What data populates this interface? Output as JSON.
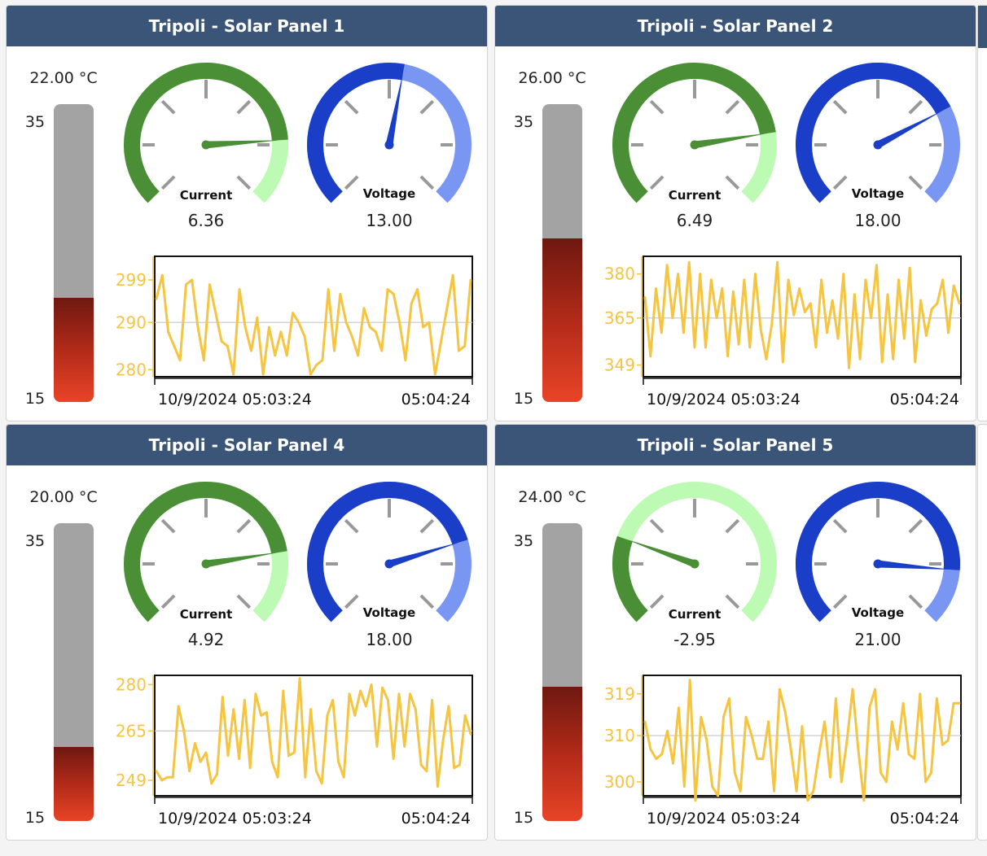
{
  "colors": {
    "header": "#3a5578",
    "current_dark": "#4a8f36",
    "current_light": "#bdfbb5",
    "voltage_dark": "#1a3ec8",
    "voltage_light": "#7896f2",
    "line": "#f5c542",
    "tick": "#999999"
  },
  "panels": [
    {
      "title": "Tripoli - Solar Panel 1",
      "temperature": "22.00 °C",
      "temp_value": 22,
      "therm_max": "35",
      "therm_min": "15",
      "current": {
        "label": "Current",
        "value": "6.36",
        "fraction": 0.82
      },
      "voltage": {
        "label": "Voltage",
        "value": "13.00",
        "fraction": 0.54
      },
      "chart_data": {
        "type": "line",
        "yticks": [
          "299",
          "290",
          "280"
        ],
        "ytick_values": [
          299,
          290,
          280
        ],
        "ylim": [
          278.5,
          304
        ],
        "x_labels": [
          "10/9/2024 05:03:24",
          "05:04:24"
        ],
        "values": [
          295,
          300,
          288,
          285,
          282,
          298,
          299,
          289,
          282,
          298,
          292,
          286,
          285,
          279,
          297,
          289,
          284,
          291,
          279,
          289,
          283,
          288,
          283,
          292,
          290,
          287,
          279,
          281,
          282,
          297,
          284,
          296,
          290,
          287,
          283,
          293,
          289,
          288,
          284,
          297,
          296,
          290,
          282,
          294,
          297,
          289,
          290,
          279,
          286,
          293,
          300,
          284,
          285,
          299
        ]
      }
    },
    {
      "title": "Tripoli - Solar Panel 2",
      "temperature": "26.00 °C",
      "temp_value": 26,
      "therm_max": "35",
      "therm_min": "15",
      "current": {
        "label": "Current",
        "value": "6.49",
        "fraction": 0.8
      },
      "voltage": {
        "label": "Voltage",
        "value": "18.00",
        "fraction": 0.73
      },
      "chart_data": {
        "type": "line",
        "yticks": [
          "380",
          "365",
          "349"
        ],
        "ytick_values": [
          380,
          365,
          349
        ],
        "ylim": [
          345,
          386
        ],
        "x_labels": [
          "10/9/2024 05:03:24",
          "05:04:24"
        ],
        "values": [
          372,
          352,
          375,
          360,
          383,
          365,
          380,
          360,
          384,
          355,
          380,
          355,
          378,
          365,
          375,
          352,
          374,
          356,
          378,
          355,
          380,
          361,
          351,
          363,
          384,
          350,
          378,
          366,
          375,
          367,
          370,
          355,
          378,
          360,
          371,
          358,
          380,
          348,
          373,
          351,
          378,
          365,
          383,
          350,
          373,
          351,
          378,
          358,
          382,
          350,
          371,
          359,
          368,
          370,
          378,
          360,
          376,
          370
        ]
      }
    },
    {
      "title": "Tripoli - Solar Panel 4",
      "temperature": "20.00 °C",
      "temp_value": 20,
      "therm_max": "35",
      "therm_min": "15",
      "current": {
        "label": "Current",
        "value": "4.92",
        "fraction": 0.8
      },
      "voltage": {
        "label": "Voltage",
        "value": "18.00",
        "fraction": 0.77
      },
      "chart_data": {
        "type": "line",
        "yticks": [
          "280",
          "265",
          "249"
        ],
        "ytick_values": [
          280,
          265,
          249
        ],
        "ylim": [
          244,
          283
        ],
        "x_labels": [
          "10/9/2024 05:03:24",
          "05:04:24"
        ],
        "values": [
          252,
          249,
          250,
          250,
          273,
          265,
          252,
          261,
          255,
          258,
          248,
          251,
          276,
          257,
          272,
          256,
          275,
          253,
          277,
          270,
          271,
          255,
          250,
          278,
          257,
          258,
          282,
          250,
          272,
          252,
          248,
          270,
          275,
          255,
          250,
          277,
          270,
          278,
          273,
          280,
          260,
          279,
          275,
          256,
          277,
          260,
          277,
          272,
          254,
          252,
          275,
          247,
          262,
          273,
          253,
          254,
          270,
          264
        ]
      }
    },
    {
      "title": "Tripoli - Solar Panel 5",
      "temperature": "24.00 °C",
      "temp_value": 24,
      "therm_max": "35",
      "therm_min": "15",
      "current": {
        "label": "Current",
        "value": "-2.95",
        "fraction": 0.24
      },
      "voltage": {
        "label": "Voltage",
        "value": "21.00",
        "fraction": 0.85
      },
      "chart_data": {
        "type": "line",
        "yticks": [
          "319",
          "310",
          "300"
        ],
        "ytick_values": [
          319,
          310,
          300
        ],
        "ylim": [
          297,
          323
        ],
        "x_labels": [
          "10/9/2024 05:03:24",
          "05:04:24"
        ],
        "values": [
          313,
          307,
          305,
          306,
          311,
          304,
          316,
          299,
          322,
          296,
          314,
          309,
          299,
          297,
          314,
          318,
          302,
          298,
          314,
          310,
          305,
          305,
          313,
          298,
          320,
          315,
          307,
          298,
          312,
          296,
          298,
          306,
          313,
          301,
          318,
          300,
          309,
          320,
          307,
          296,
          316,
          320,
          302,
          300,
          313,
          307,
          317,
          306,
          305,
          319,
          300,
          302,
          318,
          308,
          309,
          317,
          317
        ]
      }
    }
  ]
}
